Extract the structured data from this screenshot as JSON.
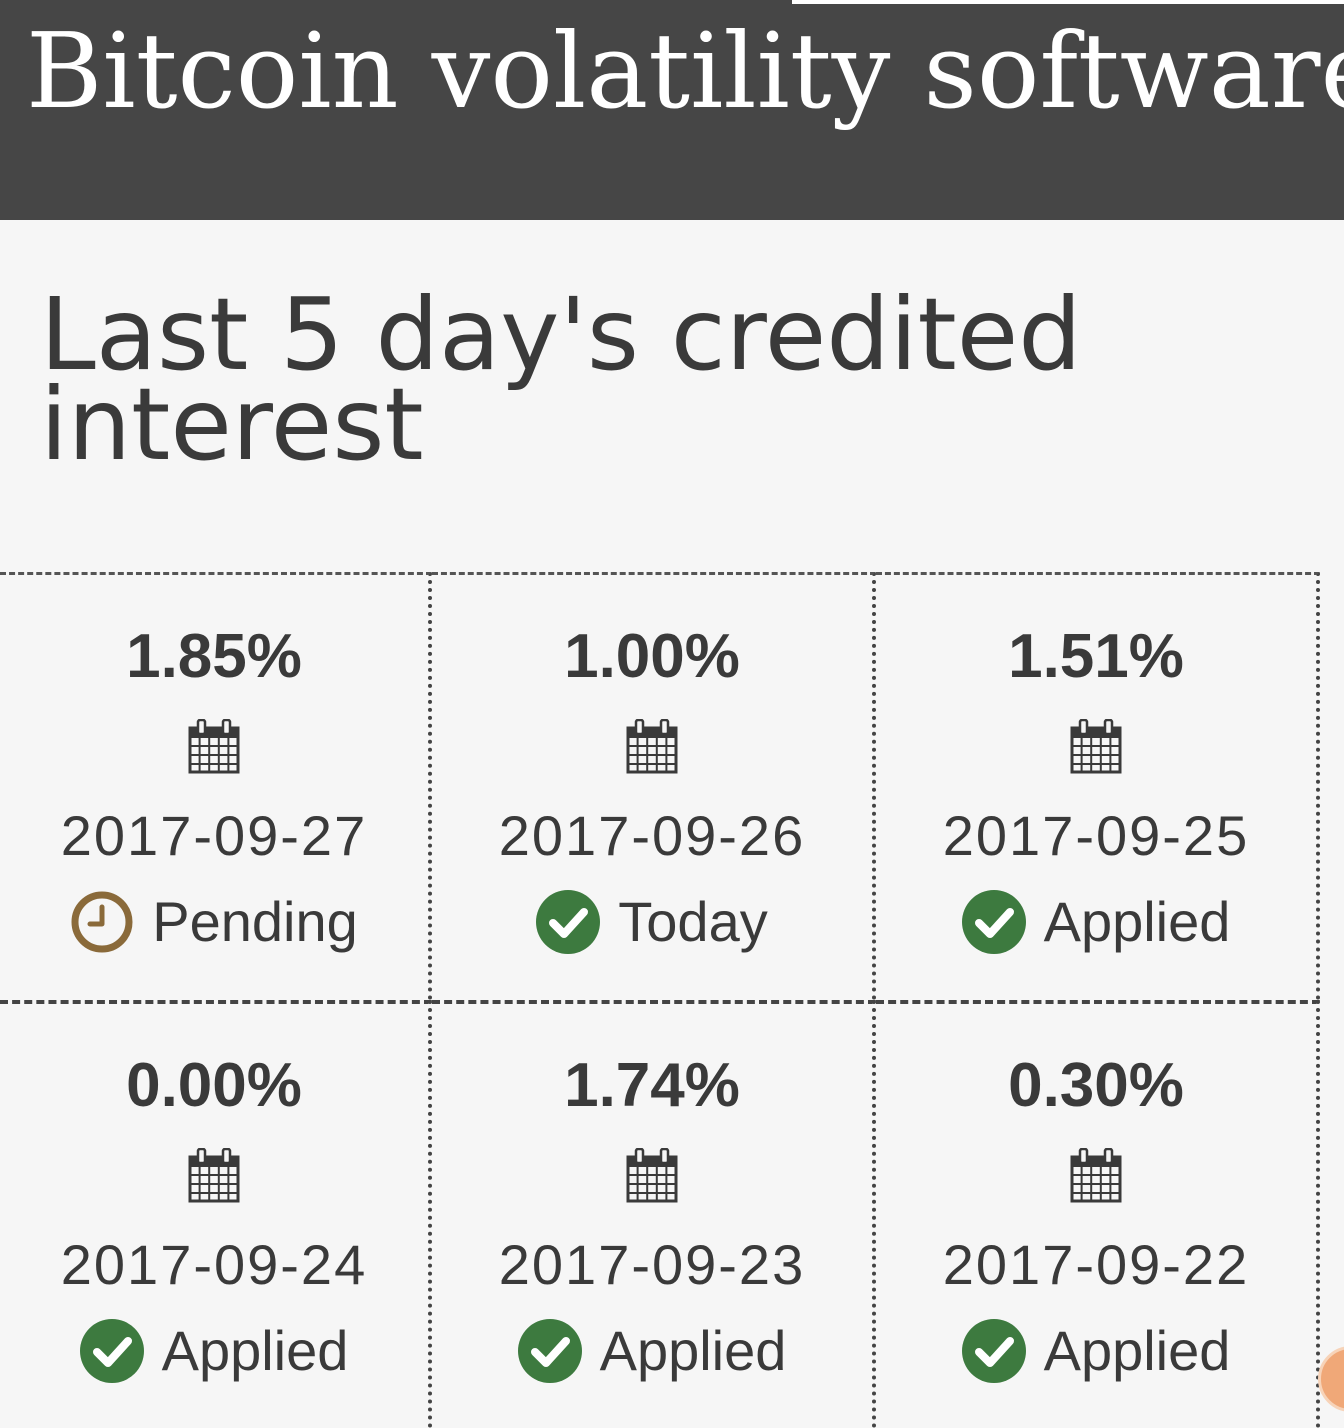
{
  "header": {
    "title": "Bitcoin volatility software"
  },
  "section": {
    "title": "Last 5 day's credited interest"
  },
  "cards": [
    {
      "rate": "1.85%",
      "date": "2017-09-27",
      "status": "Pending",
      "status_icon": "clock-icon"
    },
    {
      "rate": "1.00%",
      "date": "2017-09-26",
      "status": "Today",
      "status_icon": "check-circle-icon"
    },
    {
      "rate": "1.51%",
      "date": "2017-09-25",
      "status": "Applied",
      "status_icon": "check-circle-icon"
    },
    {
      "rate": "0.00%",
      "date": "2017-09-24",
      "status": "Applied",
      "status_icon": "check-circle-icon"
    },
    {
      "rate": "1.74%",
      "date": "2017-09-23",
      "status": "Applied",
      "status_icon": "check-circle-icon"
    },
    {
      "rate": "0.30%",
      "date": "2017-09-22",
      "status": "Applied",
      "status_icon": "check-circle-icon"
    }
  ],
  "colors": {
    "header_bg": "#464646",
    "page_bg": "#f6f6f6",
    "text": "#3a3a3a",
    "applied_green": "#3d7a3f",
    "pending_brown": "#8a6a3a"
  }
}
